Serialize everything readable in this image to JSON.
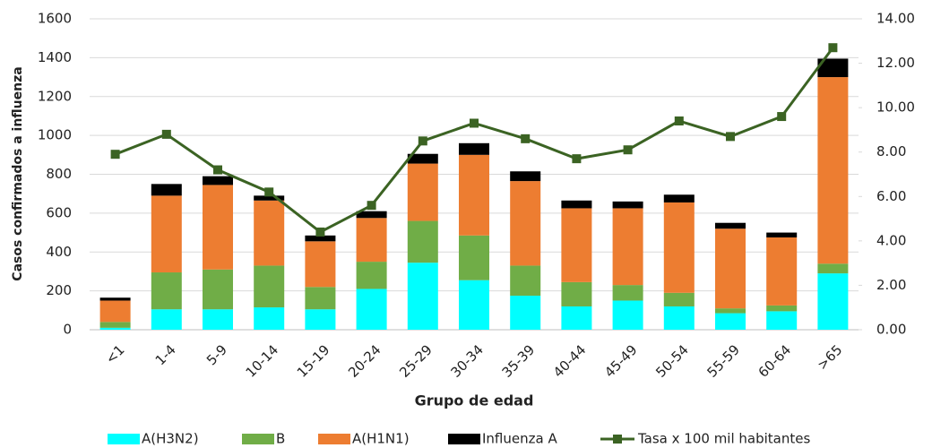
{
  "chart_data": {
    "type": "bar",
    "stacked": true,
    "y_label": "Casos confirmados a influenza",
    "x_label": "Grupo de edad",
    "categories": [
      "<1",
      "1-4",
      "5-9",
      "10-14",
      "15-19",
      "20-24",
      "25-29",
      "30-34",
      "35-39",
      "40-44",
      "45-49",
      "50-54",
      "55-59",
      "60-64",
      ">65"
    ],
    "series": [
      {
        "name": "A(H3N2)",
        "color": "#00ffff",
        "values": [
          10,
          105,
          105,
          115,
          105,
          210,
          345,
          255,
          175,
          120,
          150,
          120,
          85,
          95,
          290
        ]
      },
      {
        "name": "B",
        "color": "#70ad47",
        "values": [
          30,
          190,
          205,
          215,
          115,
          140,
          215,
          230,
          155,
          125,
          80,
          70,
          25,
          30,
          50
        ]
      },
      {
        "name": "A(H1N1)",
        "color": "#ed7d31",
        "values": [
          110,
          395,
          435,
          335,
          235,
          225,
          295,
          415,
          435,
          380,
          395,
          465,
          410,
          350,
          960
        ]
      },
      {
        "name": "Influenza A",
        "color": "#000000",
        "values": [
          15,
          60,
          45,
          25,
          30,
          35,
          50,
          60,
          50,
          40,
          35,
          40,
          30,
          25,
          95
        ]
      },
      {
        "name": "Tasa x 100 mil habitantes",
        "color": "#3b6323",
        "type": "line",
        "axis": "y2",
        "values": [
          7.9,
          8.8,
          7.2,
          6.2,
          4.4,
          5.6,
          8.5,
          9.3,
          8.6,
          7.7,
          8.1,
          9.4,
          8.7,
          9.6,
          12.7
        ]
      }
    ],
    "ylim": [
      0,
      1600
    ],
    "yticks": [
      0,
      200,
      400,
      600,
      800,
      1000,
      1200,
      1400,
      1600
    ],
    "y2lim": [
      0,
      14
    ],
    "y2ticks": [
      {
        "value": 0,
        "label": "0.00"
      },
      {
        "value": 2,
        "label": "2.00"
      },
      {
        "value": 4,
        "label": "4.00"
      },
      {
        "value": 6,
        "label": "6.00"
      },
      {
        "value": 8,
        "label": "8.00"
      },
      {
        "value": 10,
        "label": "10.00"
      },
      {
        "value": 12,
        "label": "12.00"
      },
      {
        "value": 14,
        "label": "14.00"
      }
    ],
    "grid": true,
    "legend": "bottom"
  }
}
